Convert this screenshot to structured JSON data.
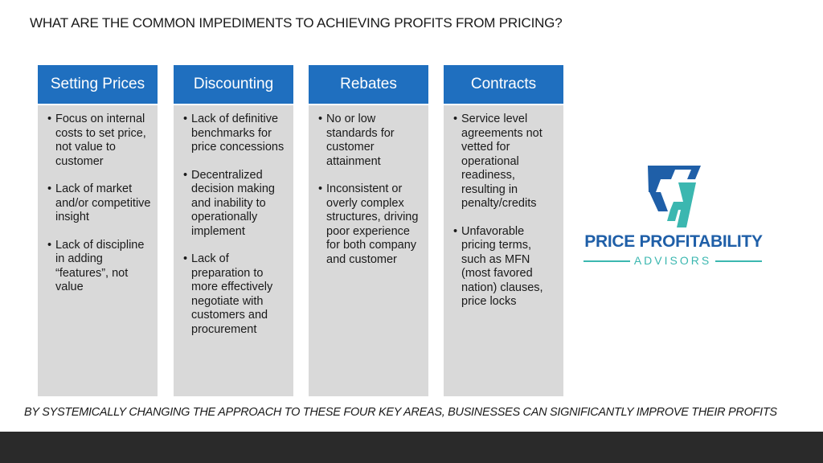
{
  "title": "WHAT ARE THE COMMON IMPEDIMENTS TO ACHIEVING PROFITS FROM PRICING?",
  "columns": [
    {
      "header": "Setting Prices",
      "bullets": [
        "Focus on internal costs to set price, not value to customer",
        "Lack of market and/or competitive insight",
        "Lack of discipline in adding “features”, not value"
      ]
    },
    {
      "header": "Discounting",
      "bullets": [
        "Lack of definitive benchmarks for price concessions",
        "Decentralized decision making and inability to operationally implement",
        "Lack of preparation to more effectively negotiate with customers and procurement"
      ]
    },
    {
      "header": "Rebates",
      "bullets": [
        "No or low standards for customer attainment",
        "Inconsistent or overly complex structures, driving poor experience for both company and customer"
      ]
    },
    {
      "header": "Contracts",
      "bullets": [
        "Service level agreements not vetted for operational readiness, resulting in penalty/credits",
        "Unfavorable pricing terms, such as MFN (most favored nation) clauses, price locks"
      ]
    }
  ],
  "logo": {
    "name_line1": "PRICE PROFITABILITY",
    "name_line2": "ADVISORS",
    "colors": {
      "blue": "#1f5fa8",
      "teal": "#3bb7b0"
    }
  },
  "conclusion": "BY SYSTEMICALLY CHANGING THE APPROACH TO THESE FOUR KEY AREAS, BUSINESSES CAN SIGNIFICANTLY IMPROVE THEIR PROFITS",
  "colors": {
    "header_blue": "#1f6fbf",
    "column_gray": "#d9d9d9",
    "footer": "#2a2a2a"
  }
}
